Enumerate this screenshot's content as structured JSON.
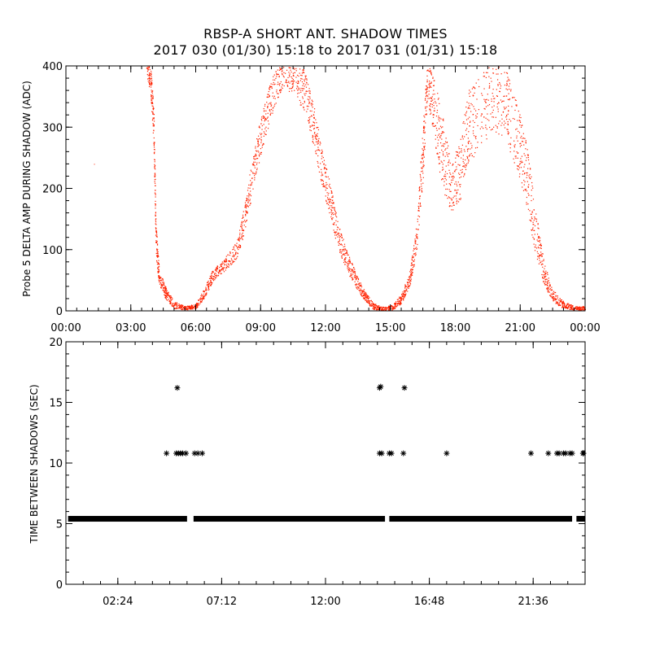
{
  "title": {
    "line1": "RBSP-A SHORT ANT. SHADOW TIMES",
    "line2": "2017 030 (01/30) 15:18 to 2017 031 (01/31) 15:18"
  },
  "colors": {
    "data_top": "#ff2200",
    "data_bottom": "#000000",
    "axis": "#000000"
  },
  "chart_data": [
    {
      "type": "scatter",
      "ylabel": "Probe 5 DELTA AMP DURING SHADOW (ADC)",
      "xlabel": "",
      "xlim_hours": [
        0,
        24
      ],
      "ylim": [
        0,
        400
      ],
      "y_ticks": [
        0,
        100,
        200,
        300,
        400
      ],
      "x_ticks": [
        {
          "hour": 0,
          "label": "00:00"
        },
        {
          "hour": 3,
          "label": "03:00"
        },
        {
          "hour": 6,
          "label": "06:00"
        },
        {
          "hour": 9,
          "label": "09:00"
        },
        {
          "hour": 12,
          "label": "12:00"
        },
        {
          "hour": 15,
          "label": "15:00"
        },
        {
          "hour": 18,
          "label": "18:00"
        },
        {
          "hour": 21,
          "label": "21:00"
        },
        {
          "hour": 24,
          "label": "00:00"
        }
      ],
      "series": [
        {
          "name": "delta amp",
          "marker": "dot",
          "color": "#ff2200",
          "envelope": [
            [
              1.3,
              240,
              20
            ],
            [
              3.7,
              410,
              20
            ],
            [
              3.9,
              380,
              25
            ],
            [
              4.05,
              300,
              30
            ],
            [
              4.15,
              120,
              30
            ],
            [
              4.3,
              55,
              12
            ],
            [
              4.6,
              30,
              10
            ],
            [
              5.0,
              10,
              6
            ],
            [
              5.5,
              5,
              3
            ],
            [
              6.0,
              8,
              4
            ],
            [
              6.4,
              30,
              8
            ],
            [
              6.8,
              60,
              10
            ],
            [
              7.3,
              75,
              10
            ],
            [
              7.9,
              100,
              14
            ],
            [
              8.3,
              160,
              25
            ],
            [
              8.7,
              240,
              30
            ],
            [
              9.1,
              300,
              30
            ],
            [
              9.5,
              350,
              30
            ],
            [
              10.0,
              390,
              25
            ],
            [
              10.5,
              385,
              30
            ],
            [
              11.0,
              360,
              35
            ],
            [
              11.4,
              310,
              35
            ],
            [
              11.8,
              240,
              30
            ],
            [
              12.2,
              180,
              28
            ],
            [
              12.6,
              120,
              22
            ],
            [
              13.0,
              80,
              16
            ],
            [
              13.4,
              50,
              12
            ],
            [
              13.8,
              25,
              8
            ],
            [
              14.2,
              8,
              5
            ],
            [
              14.6,
              4,
              3
            ],
            [
              15.1,
              6,
              4
            ],
            [
              15.5,
              20,
              8
            ],
            [
              15.9,
              55,
              12
            ],
            [
              16.2,
              120,
              25
            ],
            [
              16.5,
              260,
              45
            ],
            [
              16.7,
              380,
              30
            ],
            [
              17.0,
              330,
              50
            ],
            [
              17.4,
              260,
              60
            ],
            [
              17.8,
              200,
              40
            ],
            [
              18.2,
              230,
              50
            ],
            [
              18.6,
              300,
              60
            ],
            [
              19.2,
              330,
              60
            ],
            [
              19.8,
              350,
              55
            ],
            [
              20.4,
              330,
              60
            ],
            [
              20.9,
              280,
              55
            ],
            [
              21.3,
              220,
              50
            ],
            [
              21.7,
              130,
              40
            ],
            [
              22.1,
              60,
              18
            ],
            [
              22.5,
              25,
              10
            ],
            [
              23.0,
              10,
              6
            ],
            [
              23.5,
              5,
              3
            ],
            [
              24.0,
              5,
              3
            ]
          ]
        }
      ]
    },
    {
      "type": "scatter",
      "ylabel": "TIME BETWEEN SHADOWS (SEC)",
      "xlabel": "",
      "xlim_hours": [
        0,
        24
      ],
      "ylim": [
        0,
        20
      ],
      "y_ticks": [
        0,
        5,
        10,
        15,
        20
      ],
      "x_ticks": [
        {
          "hour": 2.4,
          "label": "02:24"
        },
        {
          "hour": 7.2,
          "label": "07:12"
        },
        {
          "hour": 12.0,
          "label": "12:00"
        },
        {
          "hour": 16.8,
          "label": "16:48"
        },
        {
          "hour": 21.6,
          "label": "21:36"
        }
      ],
      "series": [
        {
          "name": "baseline",
          "marker": "asterisk",
          "color": "#000000",
          "y": 5.4,
          "segments": [
            [
              0.1,
              5.6
            ],
            [
              5.9,
              14.75
            ],
            [
              14.95,
              23.4
            ],
            [
              23.6,
              24.0
            ]
          ]
        },
        {
          "name": "outliers",
          "marker": "asterisk",
          "color": "#000000",
          "points": [
            [
              4.65,
              10.8
            ],
            [
              5.1,
              10.8
            ],
            [
              5.2,
              10.8
            ],
            [
              5.3,
              10.8
            ],
            [
              5.4,
              10.8
            ],
            [
              5.55,
              10.8
            ],
            [
              5.95,
              10.8
            ],
            [
              6.1,
              10.8
            ],
            [
              6.3,
              10.8
            ],
            [
              5.15,
              16.2
            ],
            [
              14.5,
              10.8
            ],
            [
              14.6,
              10.8
            ],
            [
              14.5,
              16.2
            ],
            [
              14.55,
              16.3
            ],
            [
              14.95,
              10.8
            ],
            [
              15.05,
              10.8
            ],
            [
              15.6,
              10.8
            ],
            [
              15.65,
              16.2
            ],
            [
              17.6,
              10.8
            ],
            [
              21.5,
              10.8
            ],
            [
              22.3,
              10.8
            ],
            [
              22.7,
              10.8
            ],
            [
              22.8,
              10.8
            ],
            [
              23.0,
              10.8
            ],
            [
              23.1,
              10.8
            ],
            [
              23.3,
              10.8
            ],
            [
              23.4,
              10.8
            ],
            [
              23.9,
              10.8
            ],
            [
              24.0,
              10.8
            ]
          ]
        }
      ]
    }
  ]
}
